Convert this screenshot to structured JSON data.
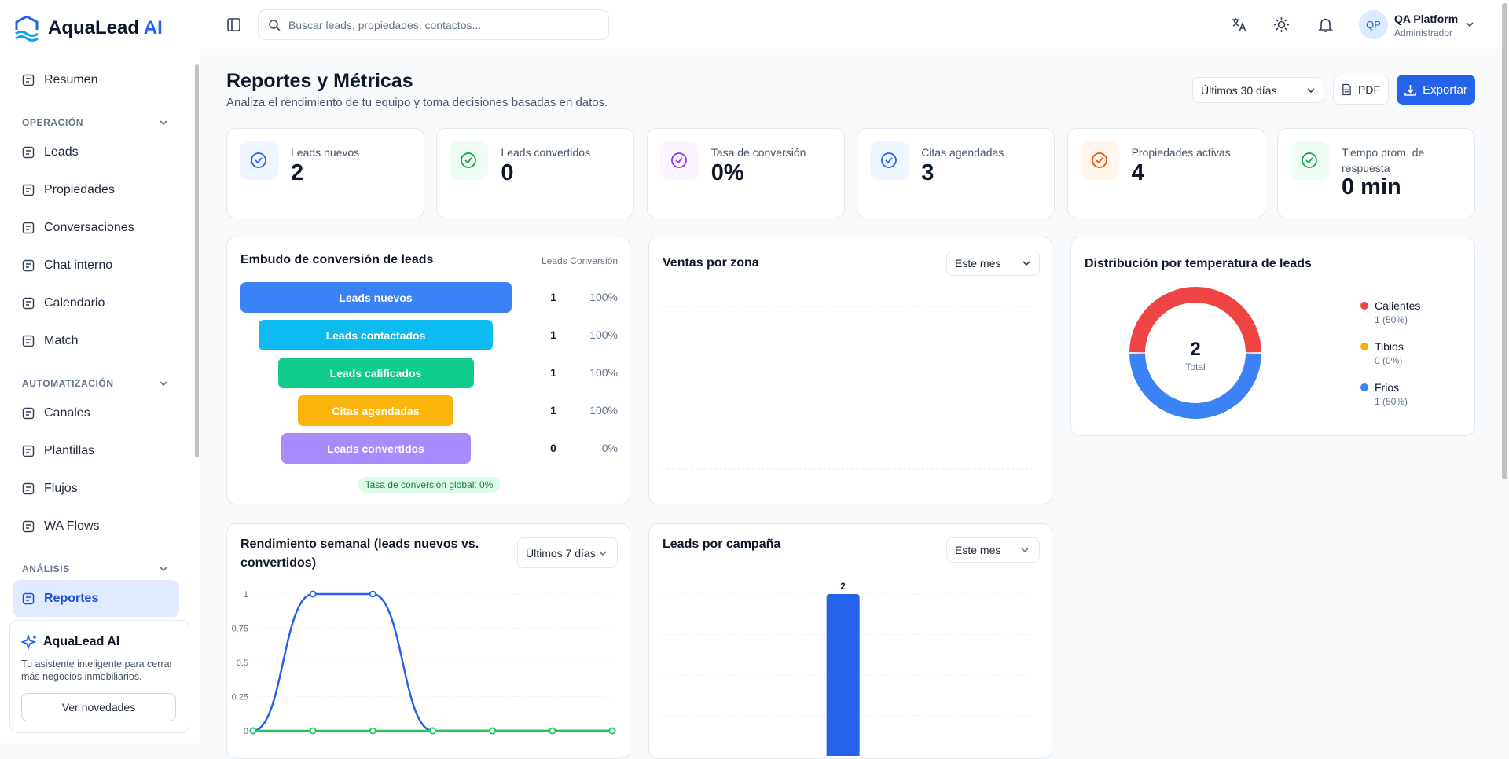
{
  "sidebar": {
    "brand": "AquaLead",
    "brand_accent": "AI",
    "home": "Resumen",
    "sections": [
      {
        "title": "OPERACIÓN",
        "items": [
          "Leads",
          "Propiedades",
          "Conversaciones",
          "Chat interno",
          "Calendario",
          "Match"
        ]
      },
      {
        "title": "AUTOMATIZACIÓN",
        "items": [
          "Canales",
          "Plantillas",
          "Flujos",
          "WA Flows"
        ]
      },
      {
        "title": "ANÁLISIS",
        "items": [
          "Reportes"
        ]
      }
    ],
    "promo": {
      "title": "AquaLead AI",
      "text": "Tu asistente inteligente para cerrar más negocios inmobiliarios.",
      "button": "Ver novedades"
    }
  },
  "header": {
    "search": "Buscar leads, propiedades, contactos...",
    "initials": "QP",
    "name": "QA Platform",
    "role": "Administrador"
  },
  "page": {
    "title": "Reportes y Métricas",
    "subtitle": "Analiza el rendimiento de tu equipo y toma decisiones basadas en datos.",
    "range": "Últimos 30 días",
    "pdf": "PDF",
    "export": "Exportar"
  },
  "kpis": [
    {
      "label": "Leads nuevos",
      "value": 2,
      "color": "#2563eb",
      "bg": "#eff6ff"
    },
    {
      "label": "Leads convertidos",
      "value": 0,
      "color": "#16a34a",
      "bg": "#f0fdf4"
    },
    {
      "label": "Tasa de conversión",
      "value": "0%",
      "color": "#9333ea",
      "bg": "#faf5ff"
    },
    {
      "label": "Citas agendadas",
      "value": 3,
      "color": "#2563eb",
      "bg": "#eff6ff"
    },
    {
      "label": "Propiedades activas",
      "value": 4,
      "color": "#ea580c",
      "bg": "#fff7ed"
    },
    {
      "label": "Tiempo prom. de respuesta",
      "value": "0 min",
      "color": "#16a34a",
      "bg": "#f0fdf4"
    }
  ],
  "funnel": {
    "title": "Embudo de conversión de leads",
    "col_leads": "Leads",
    "col_conversion": "Conversión",
    "stages": [
      {
        "label": "Leads nuevos",
        "leads": 1,
        "conversion": "100%",
        "color": "#3b82f6"
      },
      {
        "label": "Leads contactados",
        "leads": 1,
        "conversion": "100%",
        "color": "#0cbcf0"
      },
      {
        "label": "Leads calificados",
        "leads": 1,
        "conversion": "100%",
        "color": "#10cc8a"
      },
      {
        "label": "Citas agendadas",
        "leads": 1,
        "conversion": "100%",
        "color": "#fbb40c"
      },
      {
        "label": "Leads convertidos",
        "leads": 0,
        "conversion": "0%",
        "color": "#a78bfa"
      }
    ],
    "summary": "Tasa de conversión global: 0%"
  },
  "zones": {
    "title": "Ventas por zona",
    "filter": "Este mes"
  },
  "chart_data": [
    {
      "type": "pie",
      "title": "Distribución por temperatura de leads",
      "categories": [
        "Calientes",
        "Tibios",
        "Frios"
      ],
      "values": [
        1,
        0,
        1
      ],
      "value_labels": [
        "1 (50%)",
        "0 (0%)",
        "1 (50%)"
      ],
      "colors": [
        "#ef4444",
        "#f5b301",
        "#3b82f6"
      ],
      "total": 2,
      "total_label": "Total"
    },
    {
      "type": "line",
      "title": "Rendimiento semanal (leads nuevos vs. convertidos)",
      "filter": "Últimos 7 días",
      "categories": [
        null,
        null,
        null,
        null,
        null,
        null,
        null
      ],
      "series": [
        {
          "color": "#2563eb",
          "values": [
            0,
            1,
            1,
            0,
            0,
            0,
            0
          ]
        },
        {
          "color": "#22c55e",
          "values": [
            0,
            0,
            0,
            0,
            0,
            0,
            0
          ]
        }
      ],
      "ylim": [
        0,
        1
      ],
      "yticks": [
        0,
        0.25,
        0.5,
        0.75,
        1
      ],
      "grid": true
    },
    {
      "type": "bar",
      "title": "Leads por campaña",
      "filter": "Este mes",
      "categories": [
        null
      ],
      "values": [
        2
      ],
      "color": "#2563eb",
      "ylim": [
        0,
        2
      ]
    }
  ]
}
